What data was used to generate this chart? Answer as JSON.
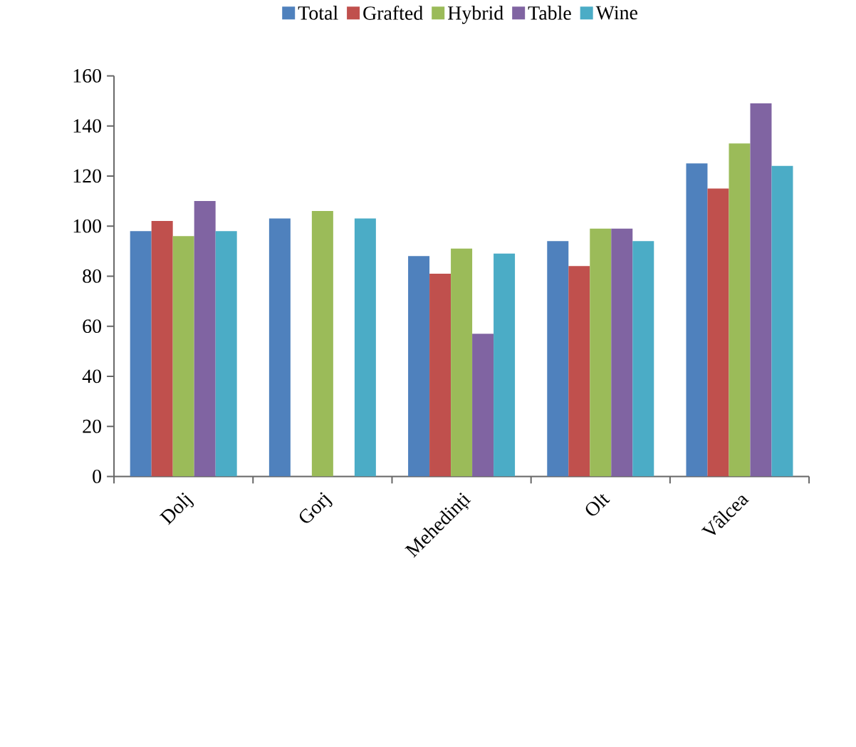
{
  "chart_data": {
    "type": "bar",
    "categories": [
      "Dolj",
      "Gorj",
      "Mehedinți",
      "Olt",
      "Vâlcea"
    ],
    "series": [
      {
        "name": "Total",
        "color": "#4f81bd",
        "values": [
          98,
          103,
          88,
          94,
          125
        ]
      },
      {
        "name": "Grafted",
        "color": "#c0504d",
        "values": [
          102,
          null,
          81,
          84,
          115
        ]
      },
      {
        "name": "Hybrid",
        "color": "#9bbb59",
        "values": [
          96,
          106,
          91,
          99,
          133
        ]
      },
      {
        "name": "Table",
        "color": "#8064a2",
        "values": [
          110,
          null,
          57,
          99,
          149
        ]
      },
      {
        "name": "Wine",
        "color": "#4bacc6",
        "values": [
          98,
          103,
          89,
          94,
          124
        ]
      }
    ],
    "ylim": [
      0,
      160
    ],
    "yticks": [
      0,
      20,
      40,
      60,
      80,
      100,
      120,
      140,
      160
    ],
    "grid": false,
    "legend": "top"
  }
}
